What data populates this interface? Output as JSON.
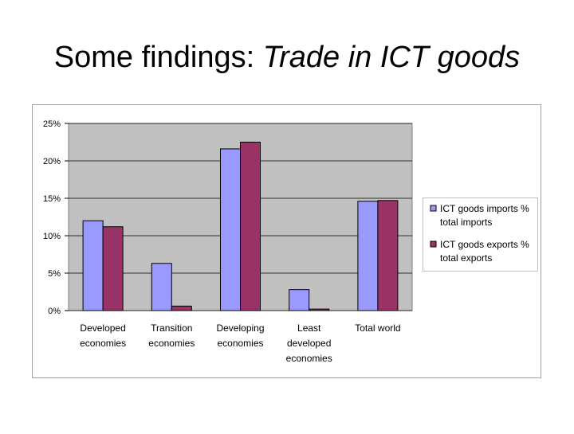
{
  "title": {
    "plain": "Some findings:",
    "italic": "Trade in ICT goods"
  },
  "chart_data": {
    "type": "bar",
    "categories": [
      "Developed economies",
      "Transition economies",
      "Developing economies",
      "Least developed economies",
      "Total world"
    ],
    "series": [
      {
        "name": "ICT goods imports % total imports",
        "color": "#9999ff",
        "values": [
          12.0,
          6.3,
          21.6,
          2.8,
          14.6
        ]
      },
      {
        "name": "ICT goods exports % total exports",
        "color": "#993366",
        "values": [
          11.2,
          0.6,
          22.5,
          0.2,
          14.7
        ]
      }
    ],
    "ylim": [
      0,
      25
    ],
    "yticks": [
      {
        "value": 0,
        "label": "0%"
      },
      {
        "value": 5,
        "label": "5%"
      },
      {
        "value": 10,
        "label": "10%"
      },
      {
        "value": 15,
        "label": "15%"
      },
      {
        "value": 20,
        "label": "20%"
      },
      {
        "value": 25,
        "label": "25%"
      }
    ],
    "grid": true,
    "legend": "right"
  }
}
